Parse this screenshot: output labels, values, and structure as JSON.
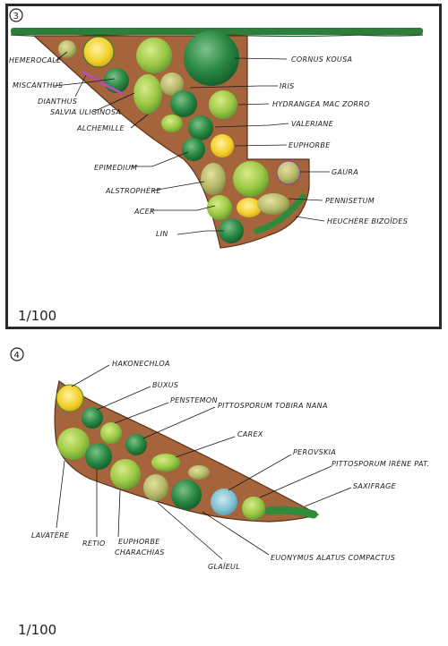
{
  "colors": {
    "frame": "#2a2a2a",
    "soil": "#a5643c",
    "hedge": "#2f7d3a",
    "light_green": "#a6cf4a",
    "dark_green": "#1f7a3a",
    "yellow": "#f2d236",
    "purple": "#a24fb3",
    "blue": "#4a9ec9"
  },
  "plan1": {
    "number": "3",
    "scale": "1/100",
    "labels": [
      {
        "id": "hemerocale",
        "text": "HEMEROCALE"
      },
      {
        "id": "miscanthus",
        "text": "MISCANTHUS"
      },
      {
        "id": "dianthus",
        "text": "DIANTHUS"
      },
      {
        "id": "salvia",
        "text": "SALVIA ULIGINOSA"
      },
      {
        "id": "alchemille",
        "text": "ALCHEMILLE"
      },
      {
        "id": "epimedium",
        "text": "EPIMEDIUM"
      },
      {
        "id": "alstrophere",
        "text": "ALSTROPHÈRE"
      },
      {
        "id": "acer",
        "text": "ACER"
      },
      {
        "id": "lin",
        "text": "LIN"
      },
      {
        "id": "cornus",
        "text": "CORNUS KOUSA"
      },
      {
        "id": "iris",
        "text": "IRIS"
      },
      {
        "id": "hydrangea",
        "text": "HYDRANGEA MAC ZORRO"
      },
      {
        "id": "valeriane",
        "text": "VALERIANE"
      },
      {
        "id": "euphorbe",
        "text": "EUPHORBE"
      },
      {
        "id": "gaura",
        "text": "GAURA"
      },
      {
        "id": "pennisetum",
        "text": "PENNISETUM"
      },
      {
        "id": "heuchere",
        "text": "HEUCHÈRE BIZOÏDES"
      }
    ]
  },
  "plan2": {
    "number": "4",
    "scale": "1/100",
    "labels": [
      {
        "id": "hakonechloa",
        "text": "HAKONECHLOA"
      },
      {
        "id": "buxus",
        "text": "BUXUS"
      },
      {
        "id": "penstemon",
        "text": "PENSTEMON"
      },
      {
        "id": "pittosporum_tobira",
        "text": "PITTOSPORUM TOBIRA NANA"
      },
      {
        "id": "carex",
        "text": "CAREX"
      },
      {
        "id": "perovskia",
        "text": "PEROVSKIA"
      },
      {
        "id": "pittosporum_irene",
        "text": "PITTOSPORUM IRÈNE PAT."
      },
      {
        "id": "saxifrage",
        "text": "SAXIFRAGE"
      },
      {
        "id": "lavatere",
        "text": "LAVATÈRE"
      },
      {
        "id": "retio",
        "text": "RETIO"
      },
      {
        "id": "euphorbe_char_1",
        "text": "EUPHORBE"
      },
      {
        "id": "euphorbe_char_2",
        "text": "CHARACHIAS"
      },
      {
        "id": "glaieul",
        "text": "GLAÏEUL"
      },
      {
        "id": "euonymus",
        "text": "EUONYMUS ALATUS COMPACTUS"
      }
    ]
  }
}
